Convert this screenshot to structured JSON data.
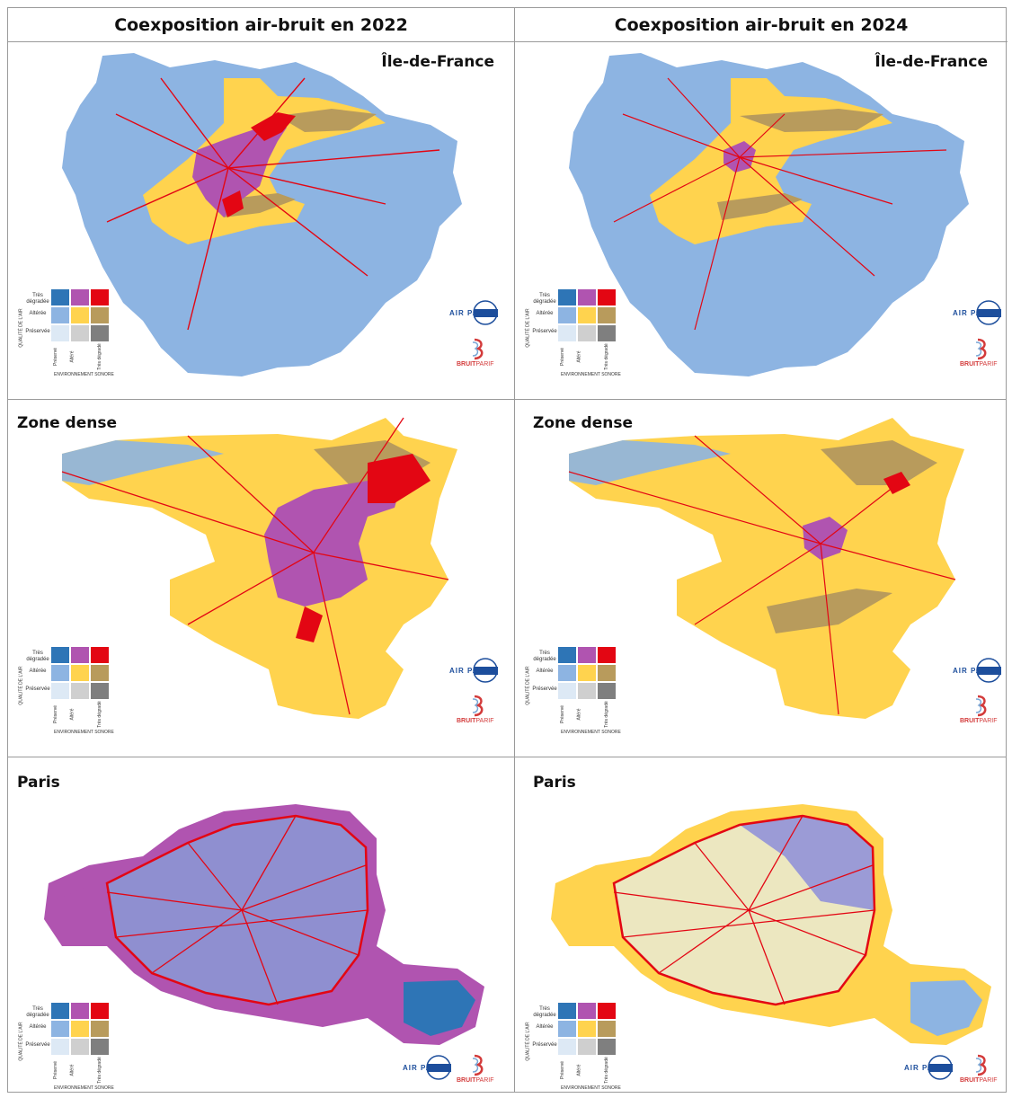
{
  "headers": {
    "left": "Coexposition air-bruit en 2022",
    "right": "Coexposition air-bruit en 2024"
  },
  "rows": [
    {
      "label_left": "Île-de-France",
      "label_right": "Île-de-France"
    },
    {
      "label_left": "Zone dense",
      "label_right": "Zone dense"
    },
    {
      "label_left": "Paris",
      "label_right": "Paris"
    }
  ],
  "legend": {
    "axis_air": "QUALITÉ DE L'AIR",
    "axis_noise": "ENVIRONNEMENT SONORE",
    "air_rows": [
      "Très dégradée",
      "Altérée",
      "Préservée"
    ],
    "noise_cols": [
      "Préservé",
      "Altéré",
      "Très dégradé"
    ],
    "colors": [
      [
        "#2e75b6",
        "#b054b0",
        "#e30613"
      ],
      [
        "#8db4e2",
        "#ffd34e",
        "#b89b5c"
      ],
      [
        "#dde9f5",
        "#cfcfcf",
        "#7f7f7f"
      ]
    ]
  },
  "logos": {
    "airparif": "AIR PARIF",
    "bruitparif_1": "BRUIT",
    "bruitparif_2": "PARIF"
  },
  "colors": {
    "preserved_degraded_air": "#8db4e2",
    "altered": "#ffd34e",
    "red": "#e30613",
    "purple": "#b054b0",
    "brown": "#b89b5c",
    "blue": "#2e75b6",
    "lightyellow": "#ece7c0"
  }
}
